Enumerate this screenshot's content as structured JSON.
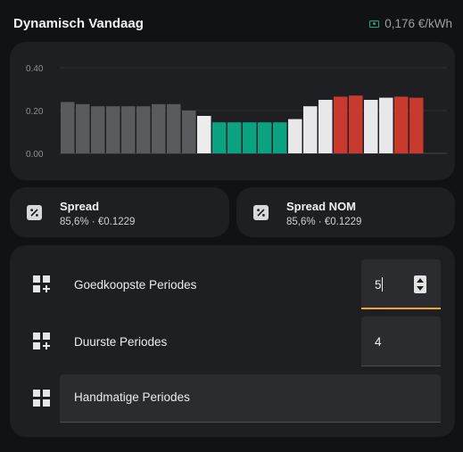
{
  "header": {
    "title": "Dynamisch Vandaag",
    "price": "0,176 €/kWh",
    "price_icon": "cash-icon"
  },
  "chart_data": {
    "type": "bar",
    "y_ticks": [
      "0.40",
      "0.20",
      "0.00"
    ],
    "ylim": [
      0,
      0.45
    ],
    "values": [
      0.24,
      0.23,
      0.22,
      0.22,
      0.22,
      0.22,
      0.23,
      0.23,
      0.2,
      0.175,
      0.145,
      0.145,
      0.145,
      0.145,
      0.145,
      0.16,
      0.22,
      0.25,
      0.265,
      0.27,
      0.25,
      0.26,
      0.265,
      0.26
    ],
    "bar_kinds": [
      "past",
      "past",
      "past",
      "past",
      "past",
      "past",
      "past",
      "past",
      "past",
      "current",
      "cheap",
      "cheap",
      "cheap",
      "cheap",
      "cheap",
      "normal",
      "normal",
      "normal",
      "expensive",
      "expensive",
      "normal",
      "normal",
      "expensive",
      "expensive"
    ],
    "colors": {
      "past": "#5a5b5f",
      "current": "#ececec",
      "normal": "#e8e8ea",
      "cheap": "#0aa381",
      "expensive": "#c83a2e"
    },
    "grid": true
  },
  "stats": [
    {
      "title": "Spread",
      "subtitle": "85,6% · €0.1229",
      "icon": "percent-icon"
    },
    {
      "title": "Spread NOM",
      "subtitle": "85,6% · €0.1229",
      "icon": "percent-icon"
    }
  ],
  "controls": {
    "cheapest": {
      "label": "Goedkoopste Periodes",
      "value": "5",
      "icon": "grid-plus-icon"
    },
    "expensive": {
      "label": "Duurste Periodes",
      "value": "4",
      "icon": "grid-plus-icon"
    },
    "manual": {
      "label": "Handmatige Periodes",
      "icon": "grid-icon"
    }
  },
  "accent_color": "#f5a623"
}
